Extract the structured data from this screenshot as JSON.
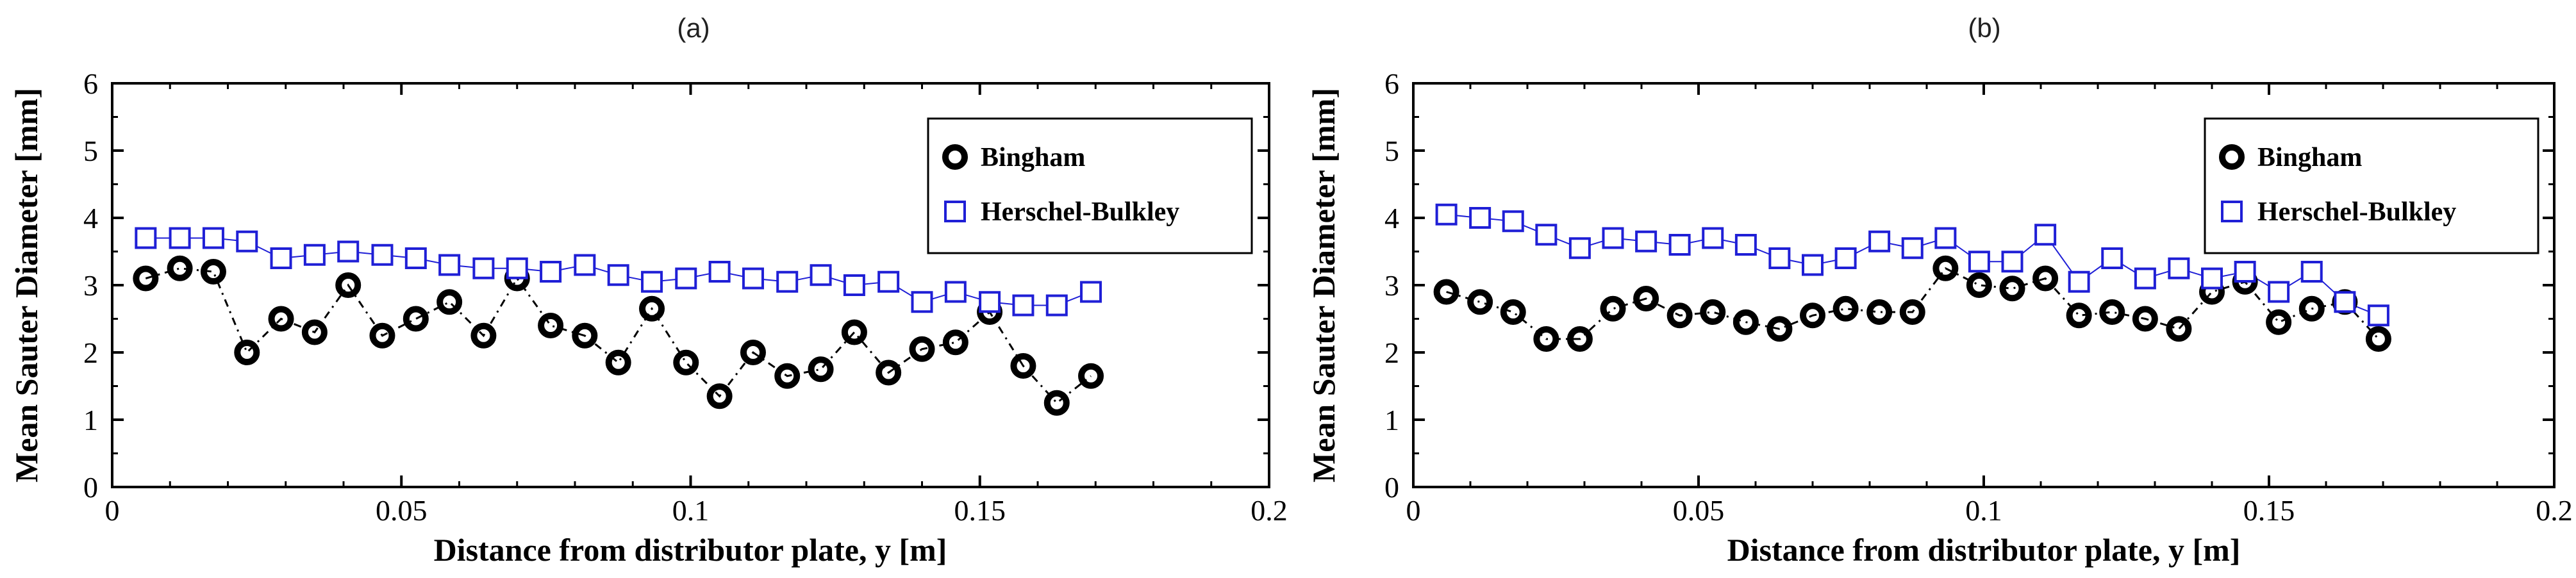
{
  "chart_data": [
    {
      "type": "scatter",
      "title": "(a)",
      "xlabel": "Distance from distributor plate, y [m]",
      "ylabel": "Mean Sauter Diameter [mm]",
      "xlim": [
        0,
        0.2
      ],
      "ylim": [
        0,
        6
      ],
      "xticks": [
        "0",
        "0.05",
        "0.1",
        "0.15",
        "0.2"
      ],
      "yticks": [
        "0",
        "1",
        "2",
        "3",
        "4",
        "5",
        "6"
      ],
      "legend_position": "top-right",
      "grid": false,
      "series": [
        {
          "name": "Bingham",
          "marker": "circle",
          "line": "dash-dot",
          "color": "#000000",
          "x": [
            0.0058,
            0.0117,
            0.0175,
            0.0233,
            0.0292,
            0.035,
            0.0408,
            0.0467,
            0.0525,
            0.0583,
            0.0642,
            0.07,
            0.0758,
            0.0817,
            0.0875,
            0.0933,
            0.0992,
            0.105,
            0.1108,
            0.1167,
            0.1225,
            0.1283,
            0.1342,
            0.14,
            0.1458,
            0.1517,
            0.1575,
            0.1633,
            0.1692
          ],
          "y": [
            3.1,
            3.25,
            3.2,
            2.0,
            2.5,
            2.3,
            3.0,
            2.25,
            2.5,
            2.75,
            2.25,
            3.1,
            2.4,
            2.25,
            1.85,
            2.65,
            1.85,
            1.35,
            2.0,
            1.65,
            1.75,
            2.3,
            1.7,
            2.05,
            2.15,
            2.6,
            1.8,
            1.25,
            1.65
          ]
        },
        {
          "name": "Herschel-Bulkley",
          "marker": "square",
          "line": "solid",
          "color": "#1f1fd6",
          "x": [
            0.0058,
            0.0117,
            0.0175,
            0.0233,
            0.0292,
            0.035,
            0.0408,
            0.0467,
            0.0525,
            0.0583,
            0.0642,
            0.07,
            0.0758,
            0.0817,
            0.0875,
            0.0933,
            0.0992,
            0.105,
            0.1108,
            0.1167,
            0.1225,
            0.1283,
            0.1342,
            0.14,
            0.1458,
            0.1517,
            0.1575,
            0.1633,
            0.1692
          ],
          "y": [
            3.7,
            3.7,
            3.7,
            3.65,
            3.4,
            3.45,
            3.5,
            3.45,
            3.4,
            3.3,
            3.25,
            3.25,
            3.2,
            3.3,
            3.15,
            3.05,
            3.1,
            3.2,
            3.1,
            3.05,
            3.15,
            3.0,
            3.05,
            2.75,
            2.9,
            2.75,
            2.7,
            2.7,
            2.9
          ]
        }
      ]
    },
    {
      "type": "scatter",
      "title": "(b)",
      "xlabel": "Distance from distributor plate, y [m]",
      "ylabel": "Mean Sauter Diameter [mm]",
      "xlim": [
        0,
        0.2
      ],
      "ylim": [
        0,
        6
      ],
      "xticks": [
        "0",
        "0.05",
        "0.1",
        "0.15",
        "0.2"
      ],
      "yticks": [
        "0",
        "1",
        "2",
        "3",
        "4",
        "5",
        "6"
      ],
      "legend_position": "top-right",
      "grid": false,
      "series": [
        {
          "name": "Bingham",
          "marker": "circle",
          "line": "dash-dot",
          "color": "#000000",
          "x": [
            0.0058,
            0.0117,
            0.0175,
            0.0233,
            0.0292,
            0.035,
            0.0408,
            0.0467,
            0.0525,
            0.0583,
            0.0642,
            0.07,
            0.0758,
            0.0817,
            0.0875,
            0.0933,
            0.0992,
            0.105,
            0.1108,
            0.1167,
            0.1225,
            0.1283,
            0.1342,
            0.14,
            0.1458,
            0.1517,
            0.1575,
            0.1633,
            0.1692
          ],
          "y": [
            2.9,
            2.75,
            2.6,
            2.2,
            2.2,
            2.65,
            2.8,
            2.55,
            2.6,
            2.45,
            2.35,
            2.55,
            2.65,
            2.6,
            2.6,
            3.25,
            3.0,
            2.95,
            3.1,
            2.55,
            2.6,
            2.5,
            2.35,
            2.9,
            3.05,
            2.45,
            2.65,
            2.75,
            2.2
          ]
        },
        {
          "name": "Herschel-Bulkley",
          "marker": "square",
          "line": "solid",
          "color": "#1f1fd6",
          "x": [
            0.0058,
            0.0117,
            0.0175,
            0.0233,
            0.0292,
            0.035,
            0.0408,
            0.0467,
            0.0525,
            0.0583,
            0.0642,
            0.07,
            0.0758,
            0.0817,
            0.0875,
            0.0933,
            0.0992,
            0.105,
            0.1108,
            0.1167,
            0.1225,
            0.1283,
            0.1342,
            0.14,
            0.1458,
            0.1517,
            0.1575,
            0.1633,
            0.1692
          ],
          "y": [
            4.05,
            4.0,
            3.95,
            3.75,
            3.55,
            3.7,
            3.65,
            3.6,
            3.7,
            3.6,
            3.4,
            3.3,
            3.4,
            3.65,
            3.55,
            3.7,
            3.35,
            3.35,
            3.75,
            3.05,
            3.4,
            3.1,
            3.25,
            3.1,
            3.2,
            2.9,
            3.2,
            2.75,
            2.55
          ]
        }
      ]
    }
  ]
}
